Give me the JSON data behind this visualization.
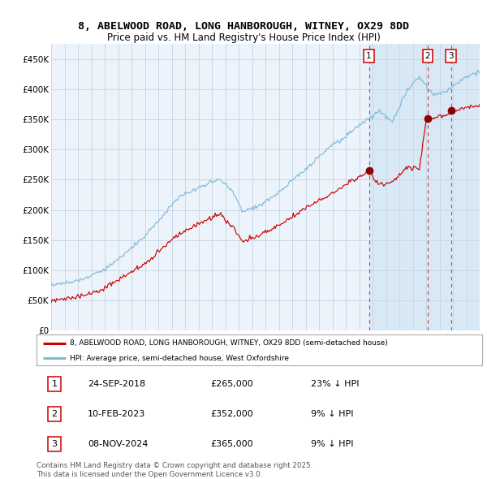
{
  "title_line1": "8, ABELWOOD ROAD, LONG HANBOROUGH, WITNEY, OX29 8DD",
  "title_line2": "Price paid vs. HM Land Registry's House Price Index (HPI)",
  "title_fontsize": 9.5,
  "subtitle_fontsize": 8.5,
  "ytick_labels": [
    "£0",
    "£50K",
    "£100K",
    "£150K",
    "£200K",
    "£250K",
    "£300K",
    "£350K",
    "£400K",
    "£450K"
  ],
  "yticks": [
    0,
    50000,
    100000,
    150000,
    200000,
    250000,
    300000,
    350000,
    400000,
    450000
  ],
  "x_start_year": 1995,
  "x_end_year": 2027,
  "hpi_color": "#7ab8d9",
  "sale_color": "#cc0000",
  "bg_color": "#ffffff",
  "plot_bg_color": "#edf3fa",
  "grid_color": "#c8d8e8",
  "shade_color": "#d8e8f5",
  "sale_points": [
    {
      "date_num": 2018.73,
      "price": 265000,
      "label": "1"
    },
    {
      "date_num": 2023.11,
      "price": 352000,
      "label": "2"
    },
    {
      "date_num": 2024.86,
      "price": 365000,
      "label": "3"
    }
  ],
  "legend_sale_label": "8, ABELWOOD ROAD, LONG HANBOROUGH, WITNEY, OX29 8DD (semi-detached house)",
  "legend_hpi_label": "HPI: Average price, semi-detached house, West Oxfordshire",
  "table_entries": [
    {
      "num": "1",
      "date": "24-SEP-2018",
      "price": "£265,000",
      "note": "23% ↓ HPI"
    },
    {
      "num": "2",
      "date": "10-FEB-2023",
      "price": "£352,000",
      "note": "9% ↓ HPI"
    },
    {
      "num": "3",
      "date": "08-NOV-2024",
      "price": "£365,000",
      "note": "9% ↓ HPI"
    }
  ],
  "footer": "Contains HM Land Registry data © Crown copyright and database right 2025.\nThis data is licensed under the Open Government Licence v3.0."
}
